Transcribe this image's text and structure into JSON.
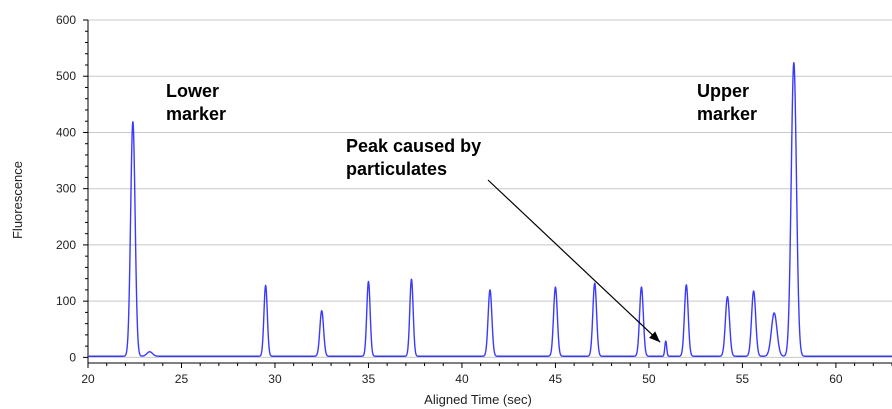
{
  "chart_data": {
    "type": "line",
    "title": "",
    "xlabel": "Aligned Time (sec)",
    "ylabel": "Fluorescence",
    "xlim": [
      20,
      63
    ],
    "ylim": [
      -10,
      600
    ],
    "x_ticks": [
      20,
      25,
      30,
      35,
      40,
      45,
      50,
      55,
      60
    ],
    "y_ticks": [
      0,
      100,
      200,
      300,
      400,
      500,
      600
    ],
    "grid": "horizontal",
    "line_color": "#3a3aff",
    "baseline": 2,
    "peaks": [
      {
        "x": 22.4,
        "y": 417,
        "width": 0.12
      },
      {
        "x": 23.3,
        "y": 8,
        "width": 0.15
      },
      {
        "x": 29.5,
        "y": 126,
        "width": 0.09
      },
      {
        "x": 32.5,
        "y": 81,
        "width": 0.1
      },
      {
        "x": 35.0,
        "y": 133,
        "width": 0.09
      },
      {
        "x": 37.3,
        "y": 137,
        "width": 0.09
      },
      {
        "x": 41.5,
        "y": 118,
        "width": 0.1
      },
      {
        "x": 45.0,
        "y": 123,
        "width": 0.1
      },
      {
        "x": 47.1,
        "y": 130,
        "width": 0.1
      },
      {
        "x": 49.6,
        "y": 123,
        "width": 0.1
      },
      {
        "x": 50.9,
        "y": 27,
        "width": 0.05
      },
      {
        "x": 52.0,
        "y": 127,
        "width": 0.1
      },
      {
        "x": 54.2,
        "y": 106,
        "width": 0.11
      },
      {
        "x": 55.6,
        "y": 116,
        "width": 0.11
      },
      {
        "x": 56.7,
        "y": 77,
        "width": 0.15
      },
      {
        "x": 57.75,
        "y": 522,
        "width": 0.14
      }
    ],
    "annotations": [
      {
        "lines": [
          "Lower",
          "marker"
        ]
      },
      {
        "lines": [
          "Upper",
          "marker"
        ]
      },
      {
        "lines": [
          "Peak caused by",
          "particulates"
        ],
        "arrow_to": [
          50.6,
          27
        ]
      }
    ]
  }
}
